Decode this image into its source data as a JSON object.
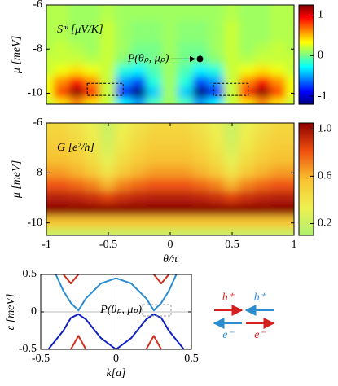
{
  "chart_data": [
    {
      "type": "heatmap",
      "label": "Sⁿˡ [μV/K]",
      "ylabel": "μ [meV]",
      "colormap": "jet",
      "xlim": [
        -1,
        1
      ],
      "ylim": [
        -10.5,
        -6
      ],
      "yticks": [
        -6,
        -8,
        -10
      ],
      "zlim": [
        -1.2,
        1.25
      ],
      "zticks": [
        1,
        0,
        -1
      ],
      "x": [
        -1,
        -0.875,
        -0.75,
        -0.625,
        -0.5,
        -0.375,
        -0.25,
        -0.125,
        0,
        0.125,
        0.25,
        0.375,
        0.5,
        0.625,
        0.75,
        0.875,
        1
      ],
      "y": [
        -6,
        -6.5,
        -7,
        -7.5,
        -8,
        -8.5,
        -9,
        -9.5,
        -10,
        -10.5
      ],
      "z": [
        [
          0.15,
          0.15,
          0.1,
          0.1,
          0.15,
          0.1,
          0.1,
          0.1,
          0.1,
          0.1,
          0.1,
          0.1,
          0.15,
          0.1,
          0.1,
          0.15,
          0.15
        ],
        [
          0.15,
          0.15,
          0.1,
          0.1,
          0.15,
          0.1,
          0.1,
          0.1,
          0.1,
          0.1,
          0.1,
          0.1,
          0.15,
          0.1,
          0.1,
          0.15,
          0.15
        ],
        [
          0.15,
          0.15,
          0.1,
          0.1,
          0.2,
          0.1,
          0.05,
          0.05,
          0.1,
          0.05,
          0.05,
          0.1,
          0.2,
          0.1,
          0.1,
          0.15,
          0.15
        ],
        [
          0.15,
          0.15,
          0.1,
          0.1,
          0.2,
          0.1,
          0.05,
          0.05,
          0.1,
          0.05,
          0.05,
          0.1,
          0.2,
          0.1,
          0.1,
          0.15,
          0.15
        ],
        [
          0.15,
          0.2,
          0.15,
          0.1,
          0.2,
          0.1,
          0,
          0,
          0.1,
          0,
          0,
          0.1,
          0.2,
          0.1,
          0.15,
          0.2,
          0.15
        ],
        [
          0.2,
          0.2,
          0.2,
          0.15,
          0.2,
          0.05,
          -0.05,
          0,
          0.1,
          0,
          -0.05,
          0.05,
          0.2,
          0.15,
          0.2,
          0.2,
          0.2
        ],
        [
          0.2,
          0.3,
          0.4,
          0.3,
          0.2,
          -0.2,
          -0.3,
          -0.1,
          0.1,
          -0.1,
          -0.3,
          -0.2,
          0.2,
          0.3,
          0.4,
          0.3,
          0.2
        ],
        [
          0.3,
          0.6,
          0.9,
          0.6,
          0.2,
          -0.5,
          -0.7,
          -0.2,
          0.1,
          -0.2,
          -0.7,
          -0.5,
          0.2,
          0.6,
          0.9,
          0.6,
          0.3
        ],
        [
          0.3,
          0.8,
          1.2,
          0.9,
          0.2,
          -0.9,
          -1.2,
          -0.4,
          0.1,
          -0.4,
          -1.2,
          -0.9,
          0.2,
          0.9,
          1.2,
          0.8,
          0.3
        ],
        [
          0.2,
          0.4,
          0.6,
          0.4,
          0.2,
          -0.3,
          -0.5,
          -0.1,
          0.1,
          -0.1,
          -0.5,
          -0.3,
          0.2,
          0.4,
          0.6,
          0.4,
          0.2
        ]
      ],
      "annotation": "P(θₚ, μₚ)",
      "point": {
        "x": 0.24,
        "y": -8.45
      },
      "boxes": [
        {
          "x": [
            -0.67,
            -0.38
          ],
          "y": [
            -9.55,
            -10.1
          ]
        },
        {
          "x": [
            0.35,
            0.63
          ],
          "y": [
            -9.55,
            -10.1
          ]
        }
      ]
    },
    {
      "type": "heatmap",
      "label": "G [e²/h]",
      "ylabel": "μ [meV]",
      "xlabel": "θ/π",
      "colormap": [
        "#b0f070",
        "#eef050",
        "#f8c030",
        "#f05010",
        "#8b0000"
      ],
      "xlim": [
        -1,
        1
      ],
      "ylim": [
        -10.5,
        -6
      ],
      "xticks": [
        -1,
        -0.5,
        0,
        0.5,
        1
      ],
      "yticks": [
        -6,
        -8,
        -10
      ],
      "zlim": [
        0.1,
        1.05
      ],
      "zticks": [
        {
          "value": 1,
          "label": "1.0"
        },
        0.6,
        0.2
      ],
      "x": [
        -1,
        -0.875,
        -0.75,
        -0.625,
        -0.5,
        -0.375,
        -0.25,
        -0.125,
        0,
        0.125,
        0.25,
        0.375,
        0.5,
        0.625,
        0.75,
        0.875,
        1
      ],
      "y": [
        -6,
        -6.5,
        -7,
        -7.5,
        -8,
        -8.5,
        -9,
        -9.5,
        -10,
        -10.5
      ],
      "z": [
        [
          0.45,
          0.45,
          0.4,
          0.32,
          0.2,
          0.32,
          0.4,
          0.45,
          0.45,
          0.45,
          0.4,
          0.32,
          0.2,
          0.32,
          0.4,
          0.45,
          0.45
        ],
        [
          0.48,
          0.48,
          0.43,
          0.35,
          0.22,
          0.35,
          0.43,
          0.48,
          0.48,
          0.48,
          0.43,
          0.35,
          0.22,
          0.35,
          0.43,
          0.48,
          0.48
        ],
        [
          0.52,
          0.52,
          0.47,
          0.38,
          0.25,
          0.38,
          0.47,
          0.52,
          0.52,
          0.52,
          0.47,
          0.38,
          0.25,
          0.38,
          0.47,
          0.52,
          0.52
        ],
        [
          0.57,
          0.57,
          0.52,
          0.44,
          0.3,
          0.44,
          0.52,
          0.57,
          0.57,
          0.57,
          0.52,
          0.44,
          0.3,
          0.44,
          0.52,
          0.57,
          0.57
        ],
        [
          0.65,
          0.65,
          0.6,
          0.52,
          0.4,
          0.52,
          0.6,
          0.65,
          0.65,
          0.65,
          0.6,
          0.52,
          0.4,
          0.52,
          0.6,
          0.65,
          0.65
        ],
        [
          0.8,
          0.8,
          0.76,
          0.7,
          0.6,
          0.7,
          0.76,
          0.8,
          0.8,
          0.8,
          0.76,
          0.7,
          0.6,
          0.7,
          0.76,
          0.8,
          0.8
        ],
        [
          0.95,
          0.95,
          0.93,
          0.9,
          0.85,
          0.9,
          0.93,
          0.95,
          0.95,
          0.95,
          0.93,
          0.9,
          0.85,
          0.9,
          0.93,
          0.95,
          0.95
        ],
        [
          1.05,
          1.05,
          1.05,
          1.05,
          1.05,
          1.05,
          1.05,
          1.05,
          1.05,
          1.05,
          1.05,
          1.05,
          1.05,
          1.05,
          1.05,
          1.05,
          1.05
        ],
        [
          0.55,
          0.55,
          0.55,
          0.55,
          0.55,
          0.55,
          0.55,
          0.55,
          0.55,
          0.55,
          0.55,
          0.55,
          0.55,
          0.55,
          0.55,
          0.55,
          0.55
        ],
        [
          0.2,
          0.2,
          0.2,
          0.2,
          0.2,
          0.2,
          0.2,
          0.2,
          0.2,
          0.2,
          0.2,
          0.2,
          0.2,
          0.2,
          0.2,
          0.2,
          0.2
        ]
      ]
    },
    {
      "type": "line",
      "xlabel": "k[a]",
      "ylabel": "ε [meV]",
      "xlim": [
        -0.5,
        0.5
      ],
      "ylim": [
        -0.5,
        0.5
      ],
      "xticks": [
        -0.5,
        0,
        0.5
      ],
      "yticks": [
        0.5,
        0,
        -0.5
      ],
      "series": [
        {
          "color": "#2b8cd0",
          "x": [
            -0.4,
            -0.35,
            -0.3,
            -0.25,
            -0.2,
            -0.1,
            0,
            0.1,
            0.2,
            0.25,
            0.3,
            0.35,
            0.4
          ],
          "values": [
            0.5,
            0.28,
            0.12,
            0.02,
            0.18,
            0.38,
            0.45,
            0.38,
            0.18,
            0.02,
            0.12,
            0.28,
            0.5
          ]
        },
        {
          "color": "#1020c0",
          "x": [
            -0.45,
            -0.35,
            -0.3,
            -0.25,
            -0.2,
            -0.1,
            0,
            0.1,
            0.2,
            0.25,
            0.3,
            0.35,
            0.45
          ],
          "values": [
            -0.5,
            -0.25,
            -0.08,
            -0.03,
            -0.1,
            -0.35,
            -0.5,
            -0.35,
            -0.1,
            -0.03,
            -0.08,
            -0.25,
            -0.5
          ]
        },
        {
          "color": "#d03020",
          "x": [
            -0.35,
            -0.3,
            -0.25,
            0,
            0.25,
            0.3,
            0.35,
            0,
            -0.3,
            -0.25,
            -0.2,
            0,
            0.2,
            0.25,
            0.3
          ],
          "values": [
            0.5,
            0.38,
            0.5,
            null,
            0.5,
            0.38,
            0.5,
            null,
            -0.5,
            -0.32,
            -0.5,
            null,
            -0.5,
            -0.32,
            -0.5
          ]
        }
      ],
      "annotation": "P(θₚ, μₚ)",
      "box": {
        "x": [
          0.176,
          0.365
        ],
        "y": [
          0.098,
          -0.054
        ]
      }
    }
  ],
  "particle_arrows": [
    {
      "label": "h⁺",
      "color": "#d62020",
      "direction": "right"
    },
    {
      "label": "h⁺",
      "color": "#2b8cd0",
      "direction": "left"
    },
    {
      "label": "e⁻",
      "color": "#2b8cd0",
      "direction": "left"
    },
    {
      "label": "e⁻",
      "color": "#d62020",
      "direction": "right"
    }
  ]
}
